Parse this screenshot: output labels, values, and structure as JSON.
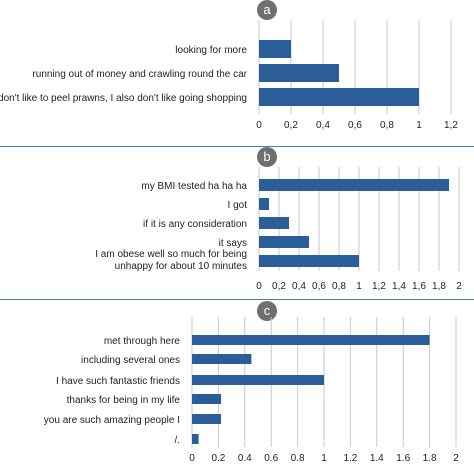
{
  "panels": [
    {
      "label": "a"
    },
    {
      "label": "b"
    },
    {
      "label": "c"
    }
  ],
  "colors": {
    "bar": "#2b5d99",
    "grid": "#c8c8c8",
    "separator": "#4a7fb0",
    "badge": "#6f6f6f",
    "text": "#222222"
  },
  "chart_data": [
    {
      "type": "bar",
      "orientation": "horizontal",
      "panel_label": "a",
      "categories": [
        "looking for more",
        "running out of money and crawling round the car",
        "I don't like to peel prawns, I also don't like going shopping"
      ],
      "values": [
        0.2,
        0.5,
        1.0
      ],
      "xlim": [
        0,
        1.2
      ],
      "xticks": [
        "0",
        "0,2",
        "0,4",
        "0,6",
        "0,8",
        "1",
        "1,2"
      ],
      "grid": "vertical"
    },
    {
      "type": "bar",
      "orientation": "horizontal",
      "panel_label": "b",
      "categories": [
        "my BMI tested ha ha ha",
        "I got",
        "if it is any consideration",
        "it says",
        "I am obese well so much for being unhappy for about 10 minutes"
      ],
      "values": [
        1.9,
        0.1,
        0.3,
        0.5,
        1.0
      ],
      "xlim": [
        0,
        2
      ],
      "xticks": [
        "0",
        "0,2",
        "0,4",
        "0,6",
        "0,8",
        "1",
        "1,2",
        "1,4",
        "1,6",
        "1,8",
        "2"
      ],
      "grid": "vertical"
    },
    {
      "type": "bar",
      "orientation": "horizontal",
      "panel_label": "c",
      "categories": [
        "met through here",
        "including several ones",
        "I have such fantastic friends",
        "thanks for being in my life",
        "you are such amazing people I",
        "/."
      ],
      "values": [
        1.8,
        0.45,
        1.0,
        0.22,
        0.22,
        0.05
      ],
      "xlim": [
        0,
        2
      ],
      "xticks": [
        "0",
        "0.2",
        "0.4",
        "0.6",
        "0.8",
        "1",
        "1.2",
        "1.4",
        "1.6",
        "1.8",
        "2"
      ],
      "grid": "vertical"
    }
  ]
}
